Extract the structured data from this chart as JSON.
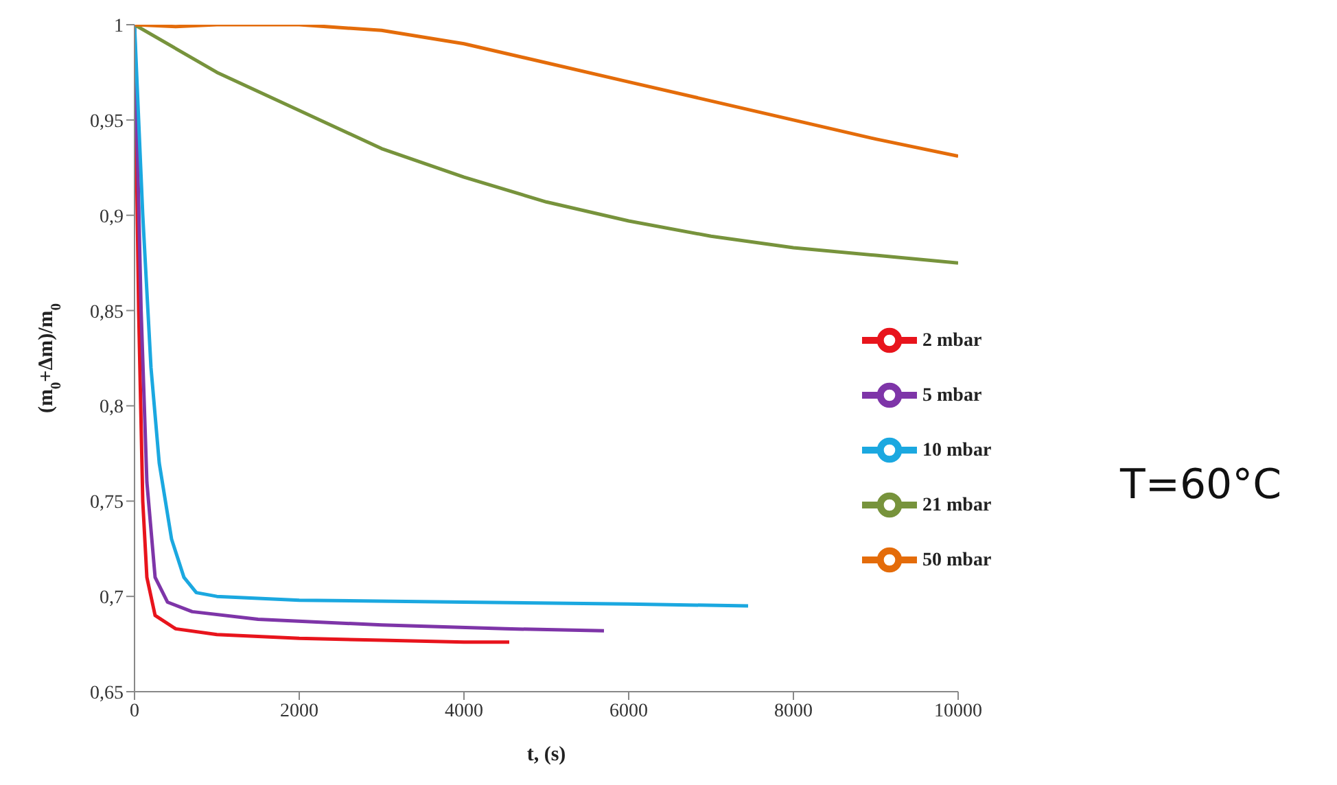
{
  "chart_data": {
    "type": "line",
    "xlabel": "t, (s)",
    "ylabel": "(m$_{0}$+Δm)/m$_{0}$",
    "annotations": [
      "T=60°C"
    ],
    "xlim": [
      0,
      10000
    ],
    "xticks": [
      0,
      2000,
      4000,
      6000,
      8000,
      10000
    ],
    "ylim": [
      0.65,
      1
    ],
    "yticks": [
      {
        "value": 0.65,
        "label": "0,65"
      },
      {
        "value": 0.7,
        "label": "0,7"
      },
      {
        "value": 0.75,
        "label": "0,75"
      },
      {
        "value": 0.8,
        "label": "0,8"
      },
      {
        "value": 0.85,
        "label": "0,85"
      },
      {
        "value": 0.9,
        "label": "0,9"
      },
      {
        "value": 0.95,
        "label": "0,95"
      },
      {
        "value": 1,
        "label": "1"
      }
    ],
    "grid": false,
    "legend": "right",
    "marker": "none",
    "line_style": "solid",
    "series": [
      {
        "name": "2 mbar",
        "color": "#e8141c",
        "x": [
          0,
          50,
          100,
          150,
          250,
          500,
          1000,
          2000,
          3000,
          4000,
          4550
        ],
        "values": [
          1,
          0.85,
          0.75,
          0.71,
          0.69,
          0.683,
          0.68,
          0.678,
          0.677,
          0.676,
          0.676
        ]
      },
      {
        "name": "5 mbar",
        "color": "#7e35a8",
        "x": [
          0,
          80,
          150,
          250,
          400,
          700,
          1500,
          3000,
          4500,
          5700
        ],
        "values": [
          1,
          0.85,
          0.76,
          0.71,
          0.697,
          0.692,
          0.688,
          0.685,
          0.683,
          0.682
        ]
      },
      {
        "name": "10 mbar",
        "color": "#1ba8e0",
        "x": [
          0,
          100,
          200,
          300,
          450,
          600,
          750,
          1000,
          2000,
          4000,
          6000,
          7450
        ],
        "values": [
          1,
          0.9,
          0.82,
          0.77,
          0.73,
          0.71,
          0.702,
          0.7,
          0.698,
          0.697,
          0.696,
          0.695
        ]
      },
      {
        "name": "21 mbar",
        "color": "#77933c",
        "x": [
          0,
          1000,
          2000,
          3000,
          4000,
          5000,
          6000,
          7000,
          8000,
          9000,
          10000
        ],
        "values": [
          1,
          0.975,
          0.955,
          0.935,
          0.92,
          0.907,
          0.897,
          0.889,
          0.883,
          0.879,
          0.875
        ]
      },
      {
        "name": "50 mbar",
        "color": "#e46c0a",
        "x": [
          0,
          500,
          1000,
          2000,
          3000,
          4000,
          5000,
          6000,
          7000,
          8000,
          9000,
          10000
        ],
        "values": [
          1,
          0.999,
          1,
          1,
          0.997,
          0.99,
          0.98,
          0.97,
          0.96,
          0.95,
          0.94,
          0.931
        ]
      }
    ]
  }
}
